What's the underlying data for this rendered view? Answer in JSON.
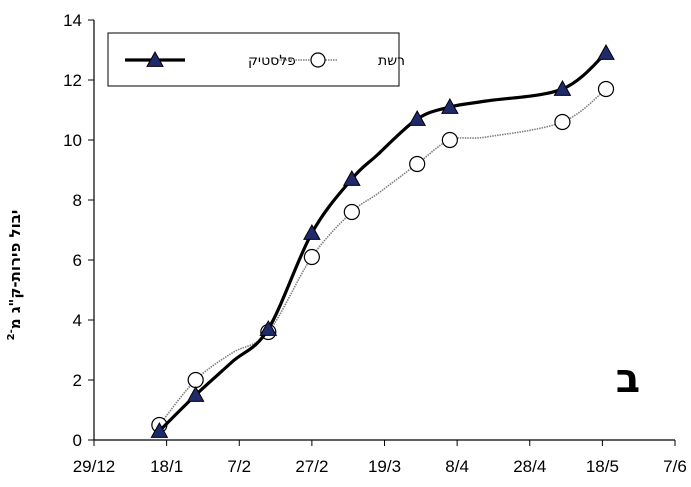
{
  "chart_data": {
    "type": "line",
    "title": "",
    "xlabel": "",
    "ylabel": "יבול פירות-ק\"ג מ",
    "ylabel_superscript": "-2",
    "panel_label": "ב",
    "xlim": [
      "29/12",
      "7/6"
    ],
    "ylim": [
      0,
      14
    ],
    "x_ticks": [
      "29/12",
      "18/1",
      "7/2",
      "27/2",
      "19/3",
      "8/4",
      "28/4",
      "18/5",
      "7/6"
    ],
    "y_ticks": [
      0,
      2,
      4,
      6,
      8,
      10,
      12,
      14
    ],
    "grid": false,
    "legend_position": "top-left",
    "series": [
      {
        "name": "פלסטיק",
        "color": "#000000",
        "marker": "triangle",
        "marker_color": "#1f2a6b",
        "x": [
          "16/1",
          "26/1",
          "5/2",
          "15/2",
          "27/2",
          "10/3",
          "17/3",
          "28/3",
          "6/4",
          "16/4",
          "7/5",
          "19/5"
        ],
        "y": [
          0.3,
          1.5,
          2.6,
          3.7,
          6.9,
          8.7,
          9.5,
          10.7,
          11.1,
          11.3,
          11.7,
          12.9
        ]
      },
      {
        "name": "רשת",
        "color": "#808080",
        "marker": "circle",
        "marker_color": "#ffffff",
        "x": [
          "16/1",
          "26/1",
          "5/2",
          "15/2",
          "27/2",
          "10/3",
          "17/3",
          "28/3",
          "6/4",
          "16/4",
          "7/5",
          "19/5"
        ],
        "y": [
          0.5,
          2.0,
          2.9,
          3.6,
          6.1,
          7.6,
          8.2,
          9.2,
          10.0,
          10.1,
          10.6,
          11.7
        ]
      }
    ]
  }
}
